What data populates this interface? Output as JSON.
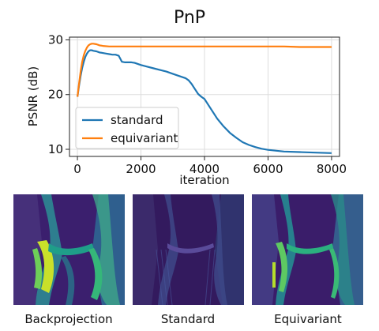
{
  "figure": {
    "title": "PnP"
  },
  "chart_data": {
    "type": "line",
    "title": "PnP",
    "xlabel": "iteration",
    "ylabel": "PSNR (dB)",
    "xlim": [
      -250,
      8250
    ],
    "ylim": [
      8.7,
      30.5
    ],
    "xticks": [
      0,
      2000,
      4000,
      6000,
      8000
    ],
    "yticks": [
      10,
      20,
      30
    ],
    "grid": true,
    "legend_position": "lower-left",
    "series": [
      {
        "name": "standard",
        "color": "#1f77b4",
        "x": [
          0,
          50,
          100,
          150,
          200,
          250,
          300,
          350,
          400,
          450,
          500,
          600,
          700,
          800,
          900,
          1000,
          1100,
          1200,
          1300,
          1400,
          1500,
          1600,
          1700,
          1800,
          2000,
          2200,
          2400,
          2600,
          2800,
          3000,
          3200,
          3400,
          3500,
          3600,
          3700,
          3800,
          3900,
          4000,
          4200,
          4400,
          4600,
          4800,
          5000,
          5200,
          5400,
          5600,
          5800,
          6000,
          6500,
          7000,
          7500,
          8000
        ],
        "y": [
          19.6,
          21.6,
          23.4,
          24.9,
          26.0,
          26.9,
          27.5,
          27.9,
          28.1,
          28.1,
          28.0,
          27.9,
          27.7,
          27.6,
          27.5,
          27.4,
          27.3,
          27.3,
          27.1,
          26.0,
          25.9,
          25.9,
          25.9,
          25.8,
          25.4,
          25.1,
          24.8,
          24.5,
          24.2,
          23.8,
          23.4,
          23.0,
          22.6,
          21.9,
          21.0,
          20.1,
          19.6,
          19.2,
          17.4,
          15.6,
          14.2,
          13.0,
          12.1,
          11.3,
          10.8,
          10.4,
          10.1,
          9.9,
          9.6,
          9.5,
          9.4,
          9.3
        ]
      },
      {
        "name": "equivariant",
        "color": "#ff7f0e",
        "x": [
          0,
          50,
          100,
          150,
          200,
          250,
          300,
          350,
          400,
          450,
          500,
          600,
          700,
          800,
          1000,
          1200,
          1500,
          2000,
          2500,
          3000,
          3500,
          4000,
          4500,
          5000,
          5500,
          6000,
          6500,
          7000,
          7500,
          8000
        ],
        "y": [
          19.6,
          22.0,
          24.2,
          26.0,
          27.2,
          28.0,
          28.6,
          29.0,
          29.2,
          29.3,
          29.3,
          29.2,
          29.0,
          28.9,
          28.8,
          28.8,
          28.8,
          28.8,
          28.8,
          28.8,
          28.8,
          28.8,
          28.8,
          28.8,
          28.8,
          28.8,
          28.8,
          28.7,
          28.7,
          28.7
        ]
      }
    ]
  },
  "panels": [
    {
      "label": "Backprojection",
      "colormap": "viridis",
      "style": "bright"
    },
    {
      "label": "Standard",
      "colormap": "viridis",
      "style": "dark"
    },
    {
      "label": "Equivariant",
      "colormap": "viridis",
      "style": "sharp"
    }
  ]
}
